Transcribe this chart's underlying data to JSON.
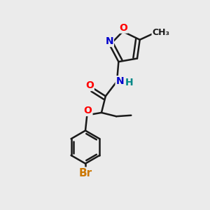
{
  "bg_color": "#ebebeb",
  "bond_color": "#1a1a1a",
  "bond_width": 1.8,
  "atom_colors": {
    "O": "#ff0000",
    "N": "#0000cc",
    "Br": "#cc7700",
    "H": "#008888",
    "C": "#1a1a1a"
  },
  "font_size": 10,
  "font_size_br": 11,
  "font_size_methyl": 9,
  "dbl_sep": 0.055
}
